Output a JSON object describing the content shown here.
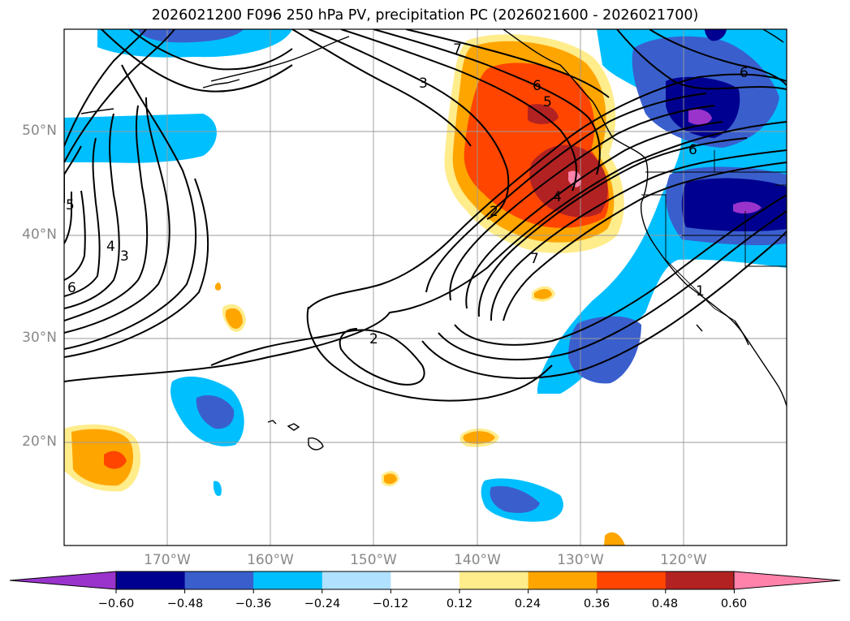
{
  "title": "2026021200 F096 250 hPa PV, precipitation PC (2026021600 - 2026021700)",
  "map": {
    "lon_range": [
      -180,
      -110
    ],
    "lat_range": [
      10,
      60
    ],
    "lat_labels": [
      "50°N",
      "40°N",
      "30°N",
      "20°N"
    ],
    "lat_values": [
      50,
      40,
      30,
      20
    ],
    "lon_labels": [
      "170°W",
      "160°W",
      "150°W",
      "140°W",
      "130°W",
      "120°W"
    ],
    "lon_values": [
      -170,
      -160,
      -150,
      -140,
      -130,
      -120
    ],
    "contour_labels": [
      "7",
      "3",
      "6",
      "5",
      "2",
      "4",
      "7",
      "2",
      "1",
      "6",
      "6",
      "5",
      "4",
      "3",
      "6"
    ]
  },
  "colorbar": {
    "ticks": [
      "−0.60",
      "−0.48",
      "−0.36",
      "−0.24",
      "−0.12",
      "0.12",
      "0.24",
      "0.36",
      "0.48",
      "0.60"
    ],
    "colors": [
      "#9933cc",
      "#000090",
      "#3a5fcd",
      "#00bfff",
      "#b0e2ff",
      "#ffffff",
      "#ffec8b",
      "#ffa500",
      "#ff4500",
      "#b22222",
      "#ff82ab"
    ]
  }
}
